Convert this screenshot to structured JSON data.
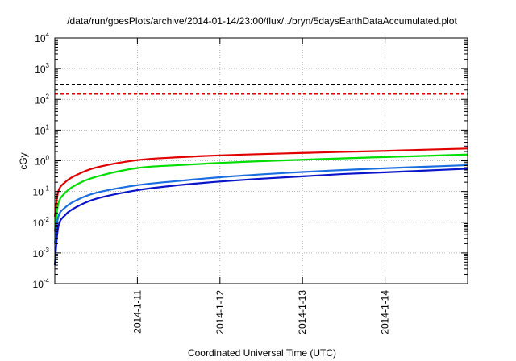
{
  "chart_data": {
    "type": "line",
    "title": "/data/run/goesPlots/archive/2014-01-14/23:00/flux/../bryn/5daysEarthDataAccumulated.plot",
    "xlabel": "Coordinated Universal Time (UTC)",
    "ylabel": "cGy",
    "yscale": "log",
    "ylim": [
      0.0001,
      10000
    ],
    "xlim": [
      "2014-01-10T00:00",
      "2014-01-15T00:00"
    ],
    "grid": true,
    "legend": "none",
    "y_ticks": [
      {
        "base": "10",
        "exp": "-4",
        "value": 0.0001
      },
      {
        "base": "10",
        "exp": "-3",
        "value": 0.001
      },
      {
        "base": "10",
        "exp": "-2",
        "value": 0.01
      },
      {
        "base": "10",
        "exp": "-1",
        "value": 0.1
      },
      {
        "base": "10",
        "exp": "0",
        "value": 1
      },
      {
        "base": "10",
        "exp": "1",
        "value": 10
      },
      {
        "base": "10",
        "exp": "2",
        "value": 100
      },
      {
        "base": "10",
        "exp": "3",
        "value": 1000
      },
      {
        "base": "10",
        "exp": "4",
        "value": 10000
      }
    ],
    "x_ticks": [
      {
        "label": "2014-1-11",
        "value": "2014-01-11T00:00"
      },
      {
        "label": "2014-1-12",
        "value": "2014-01-12T00:00"
      },
      {
        "label": "2014-1-13",
        "value": "2014-01-13T00:00"
      },
      {
        "label": "2014-1-14",
        "value": "2014-01-14T00:00"
      }
    ],
    "reference_lines": [
      {
        "y": 300,
        "color": "#000000",
        "style": "dashed"
      },
      {
        "y": 150,
        "color": "#e00000",
        "style": "dashed"
      }
    ],
    "series": [
      {
        "color": "#e00000",
        "x": [
          "2014-01-10T00:00",
          "2014-01-10T01:00",
          "2014-01-10T03:00",
          "2014-01-10T06:00",
          "2014-01-10T12:00",
          "2014-01-11T00:00",
          "2014-01-11T12:00",
          "2014-01-12T00:00",
          "2014-01-12T12:00",
          "2014-01-13T00:00",
          "2014-01-13T12:00",
          "2014-01-14T00:00",
          "2014-01-14T12:00",
          "2014-01-15T00:00"
        ],
        "y": [
          0.015,
          0.1,
          0.2,
          0.33,
          0.6,
          1.05,
          1.3,
          1.5,
          1.65,
          1.8,
          1.95,
          2.1,
          2.3,
          2.5
        ]
      },
      {
        "color": "#00dd00",
        "x": [
          "2014-01-10T00:00",
          "2014-01-10T01:00",
          "2014-01-10T03:00",
          "2014-01-10T06:00",
          "2014-01-10T12:00",
          "2014-01-11T00:00",
          "2014-01-11T12:00",
          "2014-01-12T00:00",
          "2014-01-12T12:00",
          "2014-01-13T00:00",
          "2014-01-13T12:00",
          "2014-01-14T00:00",
          "2014-01-14T12:00",
          "2014-01-15T00:00"
        ],
        "y": [
          0.005,
          0.04,
          0.09,
          0.16,
          0.3,
          0.58,
          0.72,
          0.85,
          0.97,
          1.08,
          1.2,
          1.32,
          1.45,
          1.6
        ]
      },
      {
        "color": "#1a6ee0",
        "x": [
          "2014-01-10T00:00",
          "2014-01-10T01:00",
          "2014-01-10T03:00",
          "2014-01-10T06:00",
          "2014-01-10T12:00",
          "2014-01-11T00:00",
          "2014-01-11T12:00",
          "2014-01-12T00:00",
          "2014-01-12T12:00",
          "2014-01-13T00:00",
          "2014-01-13T12:00",
          "2014-01-14T00:00",
          "2014-01-14T12:00",
          "2014-01-15T00:00"
        ],
        "y": [
          0.002,
          0.015,
          0.03,
          0.05,
          0.09,
          0.16,
          0.22,
          0.29,
          0.36,
          0.43,
          0.5,
          0.57,
          0.64,
          0.72
        ]
      },
      {
        "color": "#0a14c8",
        "x": [
          "2014-01-10T00:00",
          "2014-01-10T01:00",
          "2014-01-10T03:00",
          "2014-01-10T06:00",
          "2014-01-10T12:00",
          "2014-01-11T00:00",
          "2014-01-11T12:00",
          "2014-01-12T00:00",
          "2014-01-12T12:00",
          "2014-01-13T00:00",
          "2014-01-13T12:00",
          "2014-01-14T00:00",
          "2014-01-14T12:00",
          "2014-01-15T00:00"
        ],
        "y": [
          0.0004,
          0.007,
          0.017,
          0.03,
          0.058,
          0.11,
          0.16,
          0.21,
          0.26,
          0.31,
          0.37,
          0.42,
          0.48,
          0.55
        ]
      }
    ]
  }
}
